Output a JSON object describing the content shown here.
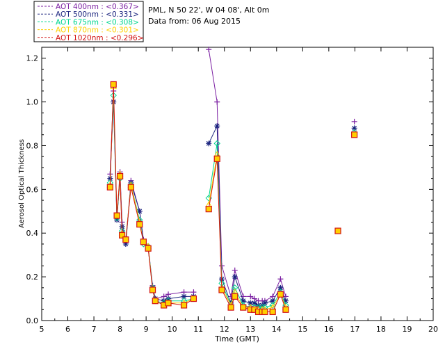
{
  "header": {
    "site": "PML, N 50 22', W 04 08', Alt 0m",
    "date": "Data from: 06 Aug 2015"
  },
  "legend_title": "",
  "colors": {
    "series400": "#7b1fa2",
    "series500": "#1a237e",
    "series675": "#00d68f",
    "series870": "#ffd000",
    "series1020": "#d21414",
    "axis": "#000000"
  },
  "chart_data": {
    "type": "line",
    "title": "",
    "xlabel": "Time (GMT)",
    "ylabel": "Aerosol Optical Thickness",
    "xlim": [
      5,
      20
    ],
    "ylim": [
      0,
      1.25
    ],
    "xticks": [
      5,
      6,
      7,
      8,
      9,
      10,
      11,
      12,
      13,
      14,
      15,
      16,
      17,
      18,
      19,
      20
    ],
    "yticks": [
      0.0,
      0.2,
      0.4,
      0.6,
      0.8,
      1.0,
      1.2
    ],
    "grid": false,
    "legend_position": "top-left outside",
    "x": [
      7.62,
      7.75,
      7.88,
      8.0,
      8.08,
      8.22,
      8.42,
      8.75,
      8.9,
      9.08,
      9.25,
      9.35,
      9.68,
      9.85,
      10.45,
      10.82,
      11.4,
      11.72,
      11.9,
      12.25,
      12.4,
      12.72,
      13.0,
      13.15,
      13.3,
      13.45,
      13.55,
      13.85,
      14.15,
      14.35,
      16.35,
      16.98
    ],
    "series": [
      {
        "name": "AOT  400nm : <0.367>",
        "marker": "plus",
        "values": [
          0.67,
          1.05,
          0.47,
          0.68,
          0.45,
          0.36,
          0.64,
          0.5,
          0.37,
          0.34,
          0.16,
          0.1,
          0.11,
          0.12,
          0.13,
          0.13,
          1.24,
          1.0,
          0.25,
          0.11,
          0.23,
          0.11,
          0.11,
          0.1,
          0.09,
          0.09,
          0.09,
          0.11,
          0.19,
          0.11,
          0.41,
          0.91
        ]
      },
      {
        "name": "AOT  500nm : <0.331>",
        "marker": "asterisk",
        "values": [
          0.65,
          1.0,
          0.46,
          0.66,
          0.43,
          0.35,
          0.63,
          0.5,
          0.36,
          0.33,
          0.15,
          0.1,
          0.09,
          0.1,
          0.11,
          0.11,
          0.81,
          0.89,
          0.19,
          0.08,
          0.2,
          0.09,
          0.08,
          0.08,
          0.07,
          0.07,
          0.08,
          0.09,
          0.15,
          0.09,
          0.41,
          0.88
        ]
      },
      {
        "name": "AOT  675nm : <0.308>",
        "marker": "diamond",
        "values": [
          0.63,
          1.03,
          0.47,
          0.65,
          0.41,
          0.37,
          0.62,
          0.46,
          0.35,
          0.34,
          0.15,
          0.09,
          0.08,
          0.09,
          0.09,
          0.1,
          0.56,
          0.81,
          0.17,
          0.07,
          0.15,
          0.07,
          0.06,
          0.06,
          0.06,
          0.06,
          0.06,
          0.07,
          0.13,
          0.07,
          0.41,
          0.86
        ]
      },
      {
        "name": "AOT  870nm : <0.301>",
        "marker": "triangle",
        "values": [
          0.62,
          1.07,
          0.48,
          0.67,
          0.4,
          0.37,
          0.62,
          0.45,
          0.36,
          0.34,
          0.14,
          0.09,
          0.07,
          0.08,
          0.08,
          0.1,
          0.53,
          0.76,
          0.15,
          0.07,
          0.13,
          0.06,
          0.06,
          0.05,
          0.05,
          0.05,
          0.05,
          0.06,
          0.12,
          0.06,
          0.41,
          0.85
        ]
      },
      {
        "name": "AOT 1020nm : <0.296>",
        "marker": "square",
        "values": [
          0.61,
          1.08,
          0.48,
          0.66,
          0.39,
          0.37,
          0.61,
          0.44,
          0.36,
          0.33,
          0.14,
          0.09,
          0.07,
          0.08,
          0.07,
          0.1,
          0.51,
          0.74,
          0.14,
          0.06,
          0.11,
          0.06,
          0.05,
          0.05,
          0.04,
          0.04,
          0.04,
          0.04,
          0.12,
          0.05,
          0.41,
          0.85
        ]
      }
    ],
    "break_before_x": [
      11.4,
      16.35,
      16.98
    ]
  }
}
